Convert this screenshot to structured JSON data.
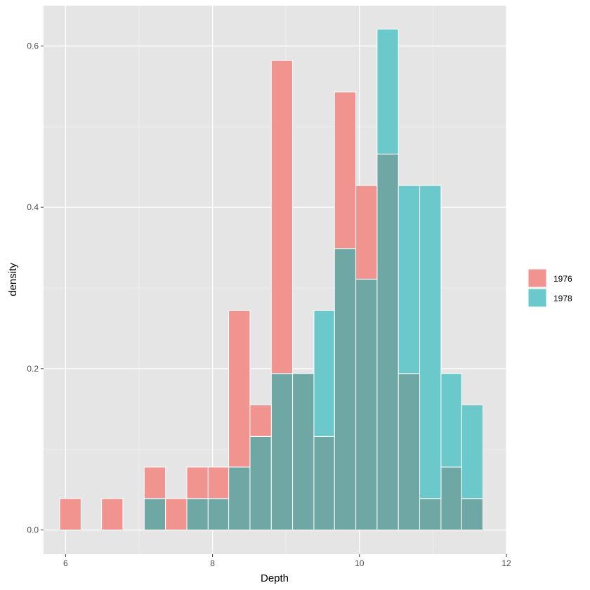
{
  "chart_data": {
    "type": "bar",
    "subtype": "overlaid-histogram",
    "title": "",
    "xlabel": "Depth",
    "ylabel": "density",
    "xlim": [
      5.7,
      12.0
    ],
    "ylim": [
      -0.03,
      0.65
    ],
    "x_ticks": [
      6,
      8,
      10,
      12
    ],
    "y_ticks": [
      0.0,
      0.2,
      0.4,
      0.6
    ],
    "x_tick_labels": [
      "6",
      "8",
      "10",
      "12"
    ],
    "y_tick_labels": [
      "0.0",
      "0.2",
      "0.4",
      "0.6"
    ],
    "grid": true,
    "legend_position": "right",
    "background": "#e5e5e5",
    "overlap_color": "#6fa7a4",
    "bin_width": 0.577,
    "bin_starts": [
      5.92,
      6.49,
      7.07,
      7.65,
      8.22,
      8.8,
      9.38,
      9.95,
      10.53,
      11.11
    ],
    "series": [
      {
        "name": "1976",
        "color": "#f8766d",
        "bins": [
          {
            "x0": 5.92,
            "x1": 6.21,
            "y": 0.039
          },
          {
            "x0": 6.49,
            "x1": 6.78,
            "y": 0.039
          },
          {
            "x0": 7.07,
            "x1": 7.36,
            "y": 0.078
          },
          {
            "x0": 7.36,
            "x1": 7.65,
            "y": 0.039
          },
          {
            "x0": 7.65,
            "x1": 7.94,
            "y": 0.078
          },
          {
            "x0": 7.94,
            "x1": 8.22,
            "y": 0.078
          },
          {
            "x0": 8.22,
            "x1": 8.51,
            "y": 0.272
          },
          {
            "x0": 8.51,
            "x1": 8.8,
            "y": 0.155
          },
          {
            "x0": 8.8,
            "x1": 9.09,
            "y": 0.582
          },
          {
            "x0": 9.09,
            "x1": 9.38,
            "y": 0.194
          },
          {
            "x0": 9.38,
            "x1": 9.66,
            "y": 0.116
          },
          {
            "x0": 9.66,
            "x1": 9.95,
            "y": 0.543
          },
          {
            "x0": 9.95,
            "x1": 10.24,
            "y": 0.427
          },
          {
            "x0": 10.24,
            "x1": 10.53,
            "y": 0.466
          },
          {
            "x0": 10.53,
            "x1": 10.82,
            "y": 0.194
          },
          {
            "x0": 10.82,
            "x1": 11.11,
            "y": 0.039
          },
          {
            "x0": 11.11,
            "x1": 11.39,
            "y": 0.078
          },
          {
            "x0": 11.39,
            "x1": 11.68,
            "y": 0.039
          }
        ]
      },
      {
        "name": "1978",
        "color": "#00bfc4",
        "bins": [
          {
            "x0": 7.07,
            "x1": 7.36,
            "y": 0.039
          },
          {
            "x0": 7.65,
            "x1": 7.94,
            "y": 0.039
          },
          {
            "x0": 7.94,
            "x1": 8.22,
            "y": 0.039
          },
          {
            "x0": 8.22,
            "x1": 8.51,
            "y": 0.078
          },
          {
            "x0": 8.51,
            "x1": 8.8,
            "y": 0.116
          },
          {
            "x0": 8.8,
            "x1": 9.09,
            "y": 0.194
          },
          {
            "x0": 9.09,
            "x1": 9.38,
            "y": 0.194
          },
          {
            "x0": 9.38,
            "x1": 9.66,
            "y": 0.272
          },
          {
            "x0": 9.66,
            "x1": 9.95,
            "y": 0.349
          },
          {
            "x0": 9.95,
            "x1": 10.24,
            "y": 0.311
          },
          {
            "x0": 10.24,
            "x1": 10.53,
            "y": 0.621
          },
          {
            "x0": 10.53,
            "x1": 10.82,
            "y": 0.427
          },
          {
            "x0": 10.82,
            "x1": 11.11,
            "y": 0.427
          },
          {
            "x0": 11.11,
            "x1": 11.39,
            "y": 0.194
          },
          {
            "x0": 11.39,
            "x1": 11.68,
            "y": 0.155
          }
        ]
      }
    ]
  }
}
